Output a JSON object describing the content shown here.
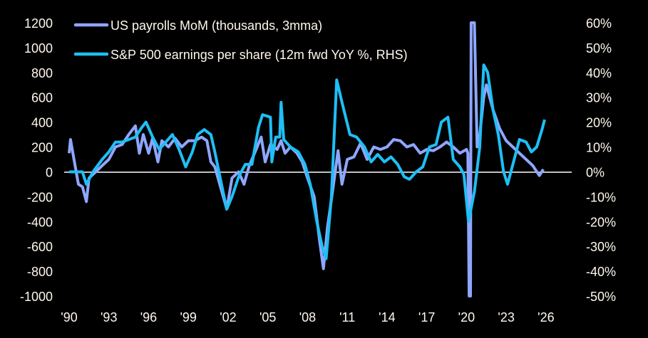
{
  "chart_data": {
    "type": "line",
    "title": "",
    "xlabel": "",
    "ylabel": "",
    "ylim_left": [
      -1000,
      1200
    ],
    "ylim_right": [
      -50,
      60
    ],
    "xlim": [
      1990,
      2026.5
    ],
    "grid": false,
    "legend_position": "top-left",
    "x_ticks": [
      {
        "v": 1990,
        "label": "'90"
      },
      {
        "v": 1993,
        "label": "'93"
      },
      {
        "v": 1996,
        "label": "'96"
      },
      {
        "v": 1999,
        "label": "'99"
      },
      {
        "v": 2002,
        "label": "'02"
      },
      {
        "v": 2005,
        "label": "'05"
      },
      {
        "v": 2008,
        "label": "'08"
      },
      {
        "v": 2011,
        "label": "'11"
      },
      {
        "v": 2014,
        "label": "'14"
      },
      {
        "v": 2017,
        "label": "'17"
      },
      {
        "v": 2020,
        "label": "'20"
      },
      {
        "v": 2023,
        "label": "'23"
      },
      {
        "v": 2026,
        "label": "'26"
      }
    ],
    "y_left_ticks": [
      "1200",
      "1000",
      "800",
      "600",
      "400",
      "200",
      "0",
      "-200",
      "-400",
      "-600",
      "-800",
      "-1000"
    ],
    "y_right_ticks": [
      "60%",
      "50%",
      "40%",
      "30%",
      "20%",
      "10%",
      "0%",
      "-10%",
      "-20%",
      "-30%",
      "-40%",
      "-50%"
    ],
    "series": [
      {
        "name": "US payrolls MoM (thousands, 3mma)",
        "axis": "left",
        "color": "#8fa6ff",
        "points": [
          [
            1990.0,
            150
          ],
          [
            1990.1,
            260
          ],
          [
            1990.4,
            80
          ],
          [
            1990.7,
            -100
          ],
          [
            1991.0,
            -120
          ],
          [
            1991.3,
            -240
          ],
          [
            1991.5,
            -50
          ],
          [
            1992.0,
            0
          ],
          [
            1992.5,
            50
          ],
          [
            1993.0,
            100
          ],
          [
            1993.5,
            200
          ],
          [
            1994.0,
            220
          ],
          [
            1994.5,
            300
          ],
          [
            1995.0,
            370
          ],
          [
            1995.3,
            150
          ],
          [
            1995.6,
            300
          ],
          [
            1996.0,
            150
          ],
          [
            1996.3,
            270
          ],
          [
            1996.7,
            80
          ],
          [
            1997.0,
            250
          ],
          [
            1997.5,
            200
          ],
          [
            1998.0,
            270
          ],
          [
            1998.5,
            200
          ],
          [
            1999.0,
            250
          ],
          [
            1999.5,
            250
          ],
          [
            2000.0,
            280
          ],
          [
            2000.4,
            250
          ],
          [
            2000.7,
            80
          ],
          [
            2001.0,
            40
          ],
          [
            2001.5,
            -150
          ],
          [
            2001.9,
            -300
          ],
          [
            2002.3,
            -50
          ],
          [
            2002.8,
            0
          ],
          [
            2003.2,
            -100
          ],
          [
            2003.6,
            50
          ],
          [
            2004.0,
            150
          ],
          [
            2004.5,
            280
          ],
          [
            2004.8,
            80
          ],
          [
            2005.2,
            220
          ],
          [
            2005.7,
            180
          ],
          [
            2006.0,
            250
          ],
          [
            2006.3,
            150
          ],
          [
            2006.7,
            200
          ],
          [
            2007.2,
            150
          ],
          [
            2007.6,
            80
          ],
          [
            2008.0,
            -50
          ],
          [
            2008.5,
            -200
          ],
          [
            2008.9,
            -550
          ],
          [
            2009.2,
            -780
          ],
          [
            2009.5,
            -450
          ],
          [
            2009.9,
            -150
          ],
          [
            2010.3,
            170
          ],
          [
            2010.6,
            -100
          ],
          [
            2011.0,
            100
          ],
          [
            2011.5,
            120
          ],
          [
            2012.0,
            230
          ],
          [
            2012.5,
            100
          ],
          [
            2013.0,
            200
          ],
          [
            2013.5,
            180
          ],
          [
            2014.0,
            200
          ],
          [
            2014.5,
            260
          ],
          [
            2015.0,
            250
          ],
          [
            2015.5,
            200
          ],
          [
            2016.0,
            220
          ],
          [
            2016.5,
            150
          ],
          [
            2017.0,
            180
          ],
          [
            2017.5,
            170
          ],
          [
            2018.0,
            200
          ],
          [
            2018.5,
            240
          ],
          [
            2019.0,
            200
          ],
          [
            2019.5,
            150
          ],
          [
            2020.0,
            180
          ],
          [
            2020.1,
            150
          ],
          [
            2020.2,
            -1000
          ],
          [
            2020.3,
            -1000
          ],
          [
            2020.35,
            1200
          ],
          [
            2020.6,
            1200
          ],
          [
            2020.8,
            200
          ],
          [
            2021.0,
            300
          ],
          [
            2021.3,
            600
          ],
          [
            2021.5,
            700
          ],
          [
            2022.0,
            500
          ],
          [
            2022.5,
            350
          ],
          [
            2023.0,
            250
          ],
          [
            2023.5,
            200
          ],
          [
            2024.0,
            150
          ],
          [
            2024.5,
            100
          ],
          [
            2025.0,
            50
          ],
          [
            2025.5,
            -30
          ],
          [
            2025.8,
            20
          ]
        ]
      },
      {
        "name": "S&P 500 earnings per share (12m fwd YoY %, RHS)",
        "axis": "right",
        "color": "#1ebff5",
        "points": [
          [
            1990.0,
            0
          ],
          [
            1991.0,
            0
          ],
          [
            1991.3,
            -5
          ],
          [
            1991.8,
            0
          ],
          [
            1992.5,
            5
          ],
          [
            1993.0,
            8
          ],
          [
            1993.5,
            12
          ],
          [
            1994.0,
            12
          ],
          [
            1994.5,
            13
          ],
          [
            1995.0,
            14
          ],
          [
            1995.5,
            18
          ],
          [
            1995.8,
            20
          ],
          [
            1996.3,
            14
          ],
          [
            1996.8,
            9
          ],
          [
            1997.3,
            12
          ],
          [
            1997.8,
            15
          ],
          [
            1998.3,
            9
          ],
          [
            1998.8,
            2
          ],
          [
            1999.3,
            8
          ],
          [
            1999.7,
            15
          ],
          [
            2000.2,
            17
          ],
          [
            2000.7,
            15
          ],
          [
            2001.0,
            8
          ],
          [
            2001.5,
            -5
          ],
          [
            2001.9,
            -15
          ],
          [
            2002.3,
            -10
          ],
          [
            2002.8,
            -2
          ],
          [
            2003.3,
            3
          ],
          [
            2003.8,
            3
          ],
          [
            2004.3,
            18
          ],
          [
            2004.6,
            23
          ],
          [
            2005.2,
            22
          ],
          [
            2005.3,
            4
          ],
          [
            2005.6,
            14
          ],
          [
            2005.9,
            14
          ],
          [
            2006.0,
            28
          ],
          [
            2006.2,
            13
          ],
          [
            2006.7,
            10
          ],
          [
            2007.3,
            8
          ],
          [
            2007.8,
            3
          ],
          [
            2008.2,
            -5
          ],
          [
            2008.7,
            -20
          ],
          [
            2009.1,
            -30
          ],
          [
            2009.4,
            -35
          ],
          [
            2009.8,
            -10
          ],
          [
            2010.2,
            37
          ],
          [
            2010.6,
            28
          ],
          [
            2011.2,
            15
          ],
          [
            2011.7,
            14
          ],
          [
            2012.3,
            10
          ],
          [
            2012.8,
            4
          ],
          [
            2013.3,
            7
          ],
          [
            2013.8,
            4
          ],
          [
            2014.3,
            6
          ],
          [
            2014.8,
            3
          ],
          [
            2015.3,
            -2
          ],
          [
            2015.7,
            -3
          ],
          [
            2016.2,
            0
          ],
          [
            2016.7,
            2
          ],
          [
            2017.2,
            10
          ],
          [
            2017.7,
            11
          ],
          [
            2018.1,
            20
          ],
          [
            2018.6,
            22
          ],
          [
            2019.0,
            5
          ],
          [
            2019.5,
            2
          ],
          [
            2019.8,
            -1
          ],
          [
            2020.15,
            -20
          ],
          [
            2020.6,
            -8
          ],
          [
            2021.0,
            10
          ],
          [
            2021.3,
            43
          ],
          [
            2021.6,
            40
          ],
          [
            2022.0,
            25
          ],
          [
            2022.4,
            15
          ],
          [
            2022.8,
            0
          ],
          [
            2023.1,
            -5
          ],
          [
            2023.6,
            5
          ],
          [
            2024.0,
            13
          ],
          [
            2024.5,
            12
          ],
          [
            2024.9,
            8
          ],
          [
            2025.3,
            10
          ],
          [
            2025.7,
            17
          ],
          [
            2025.9,
            21
          ]
        ]
      }
    ]
  }
}
